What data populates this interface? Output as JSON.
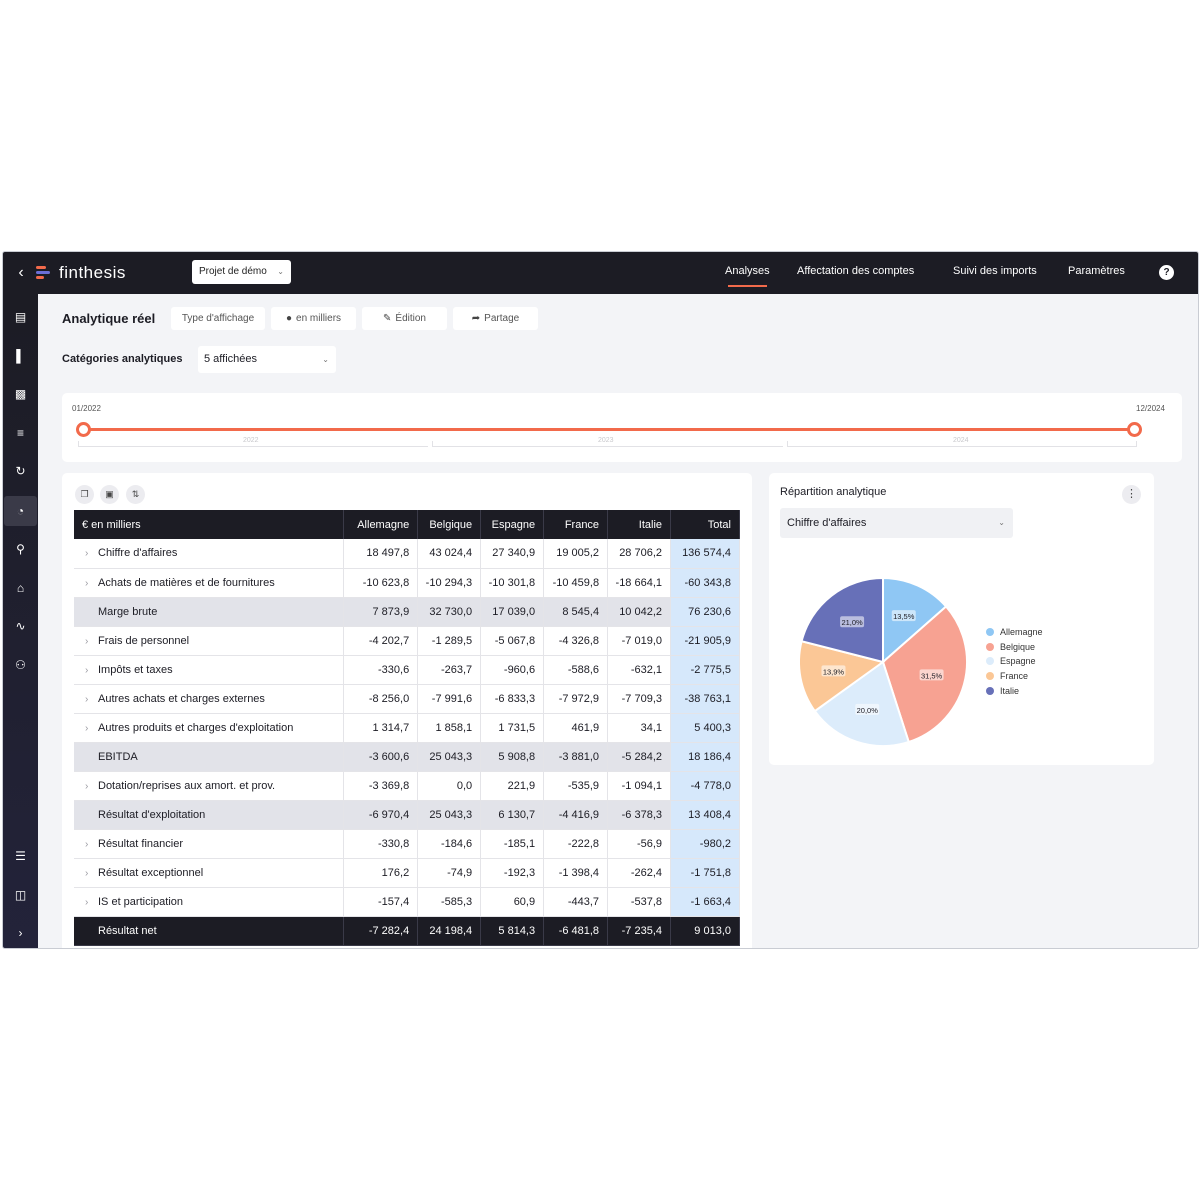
{
  "app": {
    "brand": "finthesis",
    "project": "Projet de démo"
  },
  "nav": [
    {
      "label": "Analyses",
      "active": true
    },
    {
      "label": "Affectation des comptes",
      "active": false
    },
    {
      "label": "Suivi des imports",
      "active": false
    },
    {
      "label": "Paramètres",
      "active": false
    }
  ],
  "help": "?",
  "sidebar_icons": [
    "trend-chart-icon",
    "bar-chart-icon",
    "book-icon",
    "stack-coins-icon",
    "cycle-arrows-icon",
    "pie-chart-icon",
    "search-analytics-icon",
    "home-icon",
    "pulse-icon",
    "users-icon",
    "list-icon",
    "document-icon",
    "chevron-right-icon"
  ],
  "page": {
    "title": "Analytique réel",
    "chips": {
      "display_type": "Type d'affichage",
      "units": "en milliers",
      "edition": "Édition",
      "share": "Partage"
    },
    "categories_label": "Catégories analytiques",
    "categories_value": "5 affichées"
  },
  "timeline": {
    "start": "01/2022",
    "end": "12/2024",
    "years": [
      "2022",
      "2023",
      "2024"
    ]
  },
  "table": {
    "header": [
      "€ en milliers",
      "Allemagne",
      "Belgique",
      "Espagne",
      "France",
      "Italie",
      "Total"
    ],
    "rows": [
      {
        "label": "Chiffre d'affaires",
        "type": "expand",
        "values": [
          "18 497,8",
          "43 024,4",
          "27 340,9",
          "19 005,2",
          "28 706,2",
          "136 574,4"
        ]
      },
      {
        "label": "Achats de matières et de fournitures",
        "type": "expand",
        "values": [
          "-10 623,8",
          "-10 294,3",
          "-10 301,8",
          "-10 459,8",
          "-18 664,1",
          "-60 343,8"
        ]
      },
      {
        "label": "Marge brute",
        "type": "sub",
        "values": [
          "7 873,9",
          "32 730,0",
          "17 039,0",
          "8 545,4",
          "10 042,2",
          "76 230,6"
        ]
      },
      {
        "label": "Frais de personnel",
        "type": "expand",
        "values": [
          "-4 202,7",
          "-1 289,5",
          "-5 067,8",
          "-4 326,8",
          "-7 019,0",
          "-21 905,9"
        ]
      },
      {
        "label": "Impôts et taxes",
        "type": "expand",
        "values": [
          "-330,6",
          "-263,7",
          "-960,6",
          "-588,6",
          "-632,1",
          "-2 775,5"
        ]
      },
      {
        "label": "Autres achats et charges externes",
        "type": "expand",
        "values": [
          "-8 256,0",
          "-7 991,6",
          "-6 833,3",
          "-7 972,9",
          "-7 709,3",
          "-38 763,1"
        ]
      },
      {
        "label": "Autres produits et charges d'exploitation",
        "type": "expand",
        "values": [
          "1 314,7",
          "1 858,1",
          "1 731,5",
          "461,9",
          "34,1",
          "5 400,3"
        ]
      },
      {
        "label": "EBITDA",
        "type": "sub",
        "values": [
          "-3 600,6",
          "25 043,3",
          "5 908,8",
          "-3 881,0",
          "-5 284,2",
          "18 186,4"
        ]
      },
      {
        "label": "Dotation/reprises aux amort. et prov.",
        "type": "expand",
        "values": [
          "-3 369,8",
          "0,0",
          "221,9",
          "-535,9",
          "-1 094,1",
          "-4 778,0"
        ]
      },
      {
        "label": "Résultat d'exploitation",
        "type": "sub",
        "values": [
          "-6 970,4",
          "25 043,3",
          "6 130,7",
          "-4 416,9",
          "-6 378,3",
          "13 408,4"
        ]
      },
      {
        "label": "Résultat financier",
        "type": "expand",
        "values": [
          "-330,8",
          "-184,6",
          "-185,1",
          "-222,8",
          "-56,9",
          "-980,2"
        ]
      },
      {
        "label": "Résultat exceptionnel",
        "type": "expand",
        "values": [
          "176,2",
          "-74,9",
          "-192,3",
          "-1 398,4",
          "-262,4",
          "-1 751,8"
        ]
      },
      {
        "label": "IS et participation",
        "type": "expand",
        "values": [
          "-157,4",
          "-585,3",
          "60,9",
          "-443,7",
          "-537,8",
          "-1 663,4"
        ]
      },
      {
        "label": "Résultat net",
        "type": "final",
        "values": [
          "-7 282,4",
          "24 198,4",
          "5 814,3",
          "-6 481,8",
          "-7 235,4",
          "9 013,0"
        ]
      }
    ]
  },
  "pie_panel": {
    "title": "Répartition analytique",
    "select_value": "Chiffre d'affaires"
  },
  "chart_data": {
    "type": "pie",
    "title": "",
    "slices": [
      {
        "name": "Allemagne",
        "value": 13.5,
        "label": "13,5%",
        "color": "#8fc7f4"
      },
      {
        "name": "Belgique",
        "value": 31.5,
        "label": "31,5%",
        "color": "#f7a292"
      },
      {
        "name": "Espagne",
        "value": 20.0,
        "label": "20,0%",
        "color": "#dcecfb"
      },
      {
        "name": "France",
        "value": 13.9,
        "label": "13,9%",
        "color": "#fbc796"
      },
      {
        "name": "Italie",
        "value": 21.0,
        "label": "21,0%",
        "color": "#6770b8"
      }
    ],
    "legend_position": "right"
  },
  "colors": {
    "accent": "#f26a4b",
    "dark": "#1c1c24",
    "total_col": "#d6e8fb"
  }
}
